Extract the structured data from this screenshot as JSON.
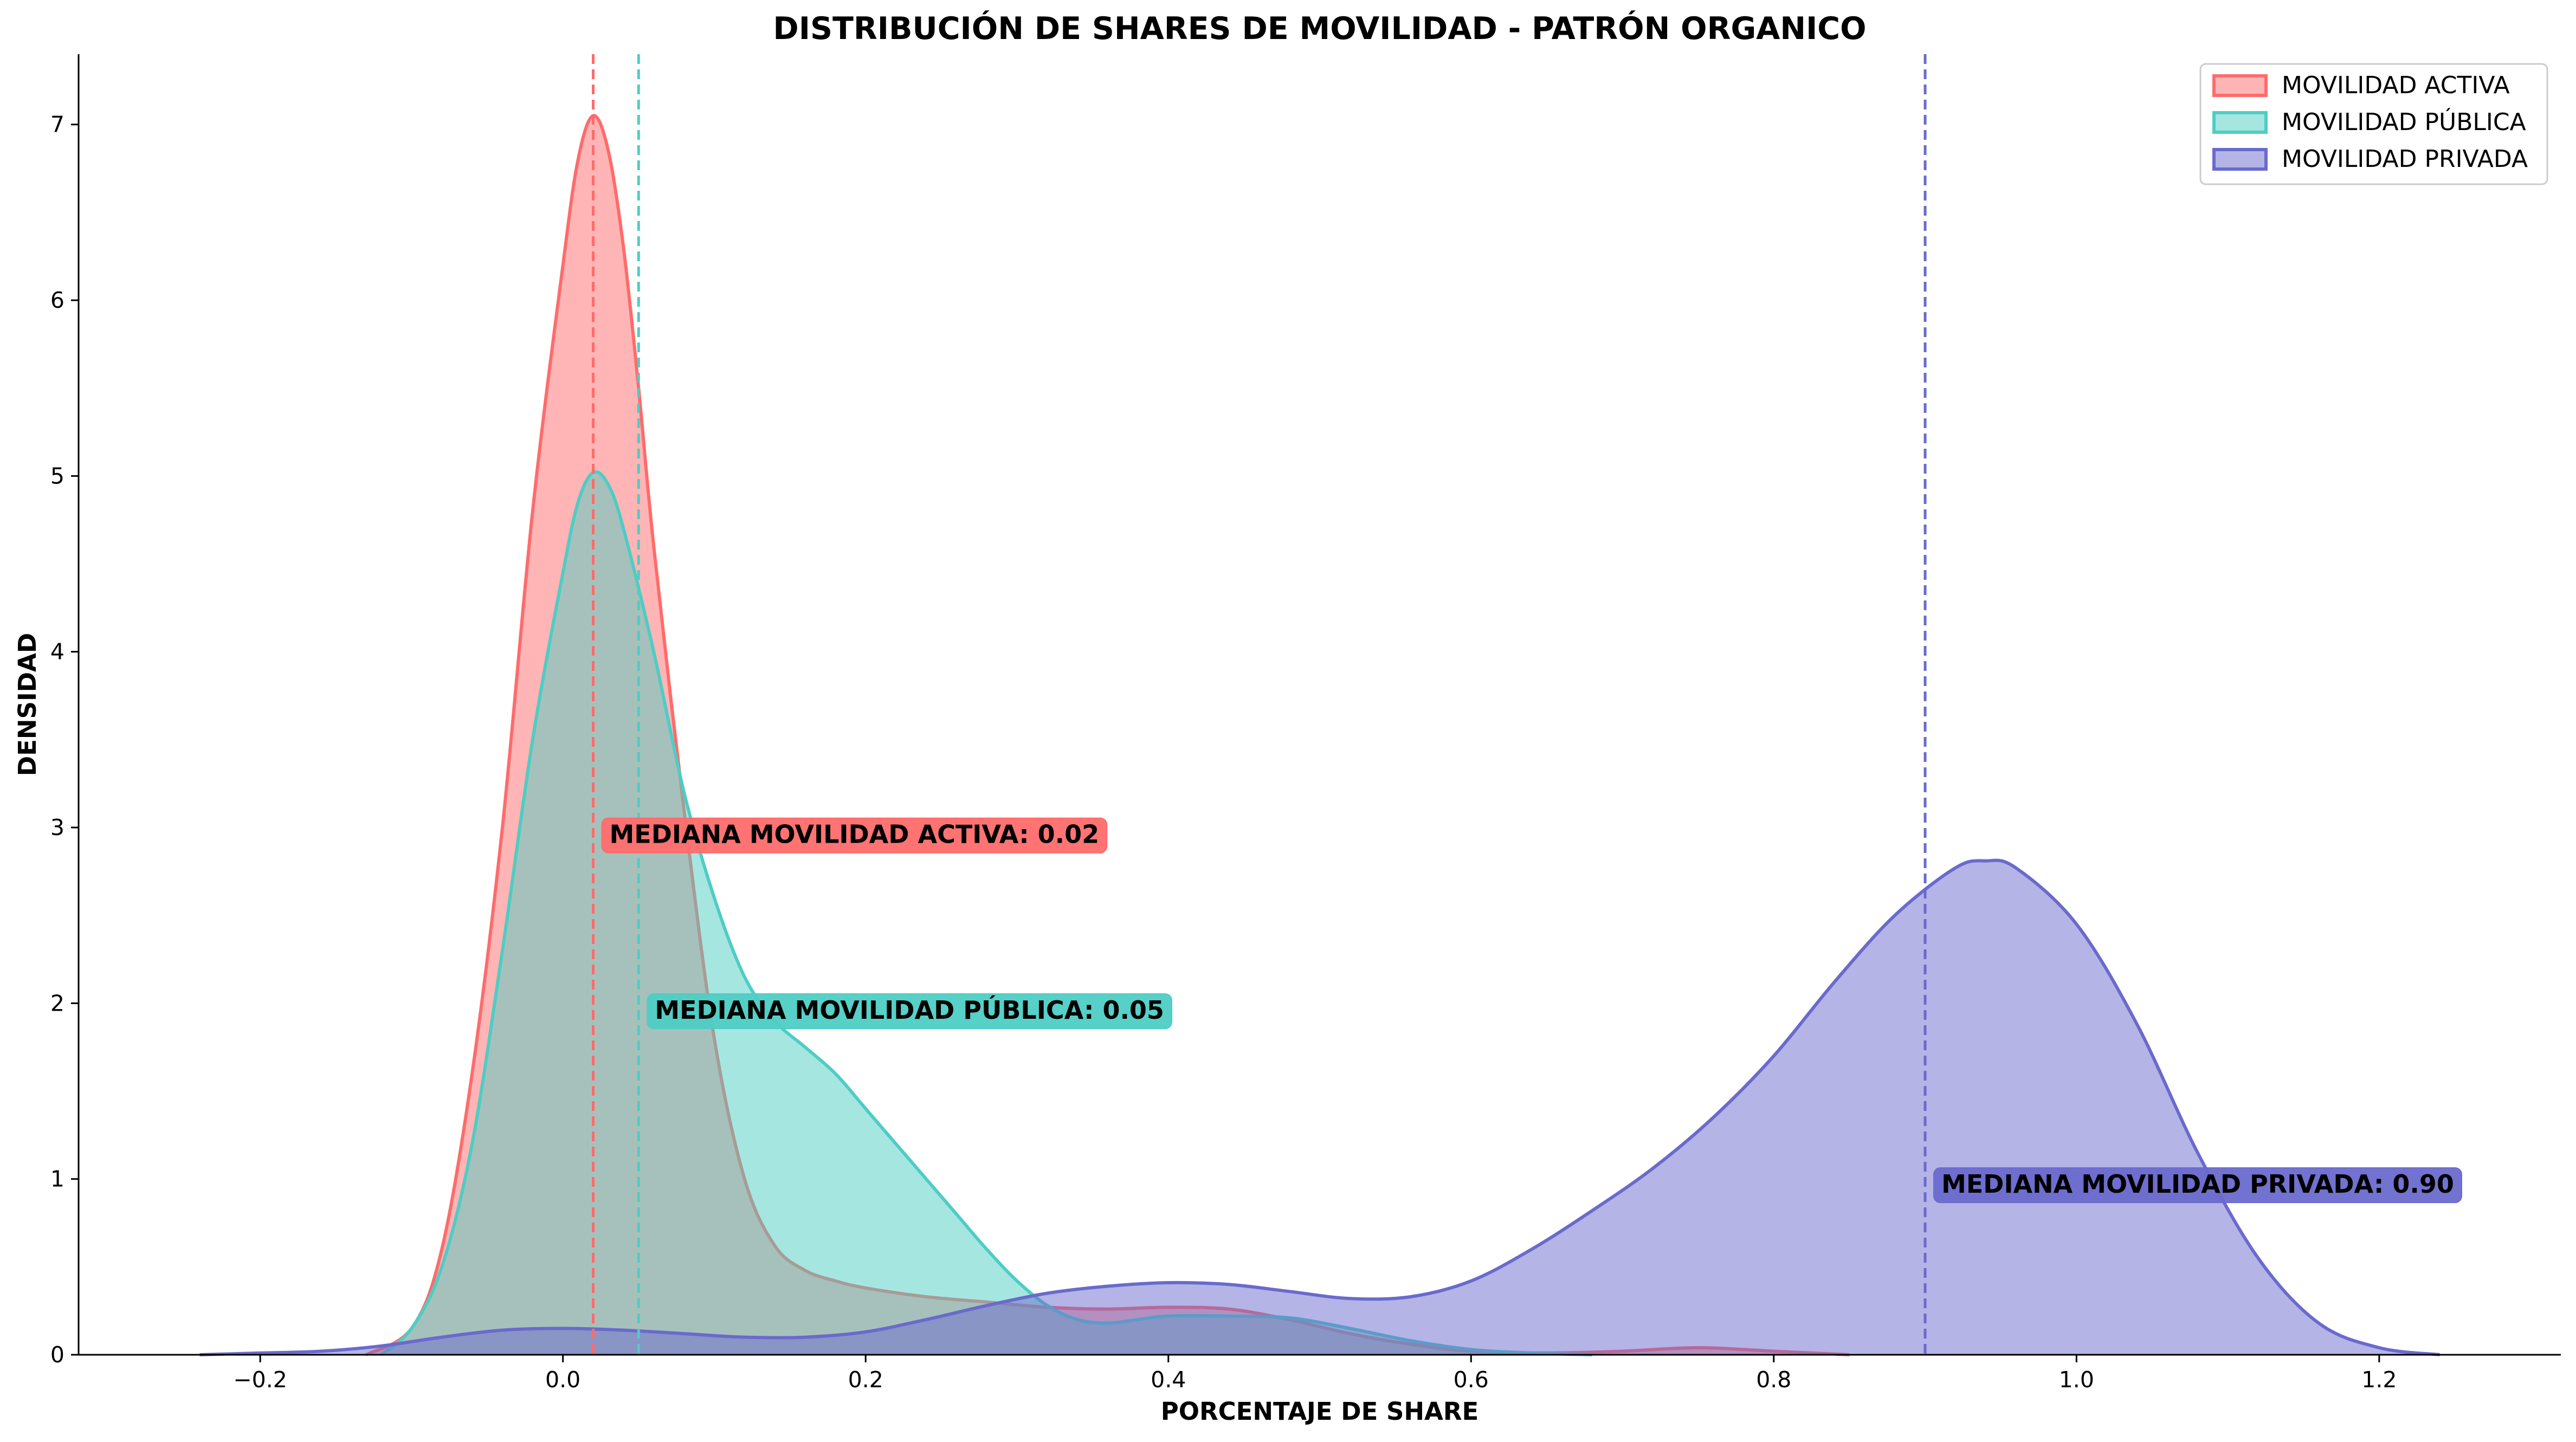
{
  "chart_data": {
    "type": "area",
    "title": "DISTRIBUCIÓN DE SHARES DE MOVILIDAD - PATRÓN ORGANICO",
    "xlabel": "PORCENTAJE DE SHARE",
    "ylabel": "DENSIDAD",
    "xlim": [
      -0.32,
      1.32
    ],
    "ylim": [
      0,
      7.4
    ],
    "xticks": [
      -0.2,
      0.0,
      0.2,
      0.4,
      0.6,
      0.8,
      1.0,
      1.2
    ],
    "xtick_labels": [
      "−0.2",
      "0.0",
      "0.2",
      "0.4",
      "0.6",
      "0.8",
      "1.0",
      "1.2"
    ],
    "yticks": [
      0,
      1,
      2,
      3,
      4,
      5,
      6,
      7
    ],
    "ytick_labels": [
      "0",
      "1",
      "2",
      "3",
      "4",
      "5",
      "6",
      "7"
    ],
    "grid": false,
    "legend_position": "top-right",
    "series": [
      {
        "name": "MOVILIDAD ACTIVA",
        "color": "#ff6b6b",
        "median": 0.02,
        "median_label": "MEDIANA MOVILIDAD ACTIVA: 0.02",
        "annotation_y": 2.93,
        "x": [
          -0.13,
          -0.1,
          -0.08,
          -0.06,
          -0.04,
          -0.02,
          0.0,
          0.01,
          0.02,
          0.03,
          0.04,
          0.05,
          0.06,
          0.08,
          0.1,
          0.12,
          0.14,
          0.16,
          0.18,
          0.2,
          0.24,
          0.28,
          0.32,
          0.36,
          0.4,
          0.44,
          0.48,
          0.52,
          0.56,
          0.6,
          0.65,
          0.7,
          0.75,
          0.8,
          0.85
        ],
        "y": [
          0.0,
          0.15,
          0.6,
          1.6,
          3.0,
          4.8,
          6.2,
          6.8,
          7.05,
          6.85,
          6.3,
          5.5,
          4.6,
          3.1,
          1.8,
          1.0,
          0.62,
          0.48,
          0.42,
          0.38,
          0.33,
          0.3,
          0.27,
          0.26,
          0.27,
          0.26,
          0.2,
          0.12,
          0.06,
          0.02,
          0.01,
          0.02,
          0.04,
          0.02,
          0.0
        ]
      },
      {
        "name": "MOVILIDAD PÚBLICA",
        "color": "#4ecdc4",
        "median": 0.05,
        "median_label": "MEDIANA MOVILIDAD PÚBLICA: 0.05",
        "annotation_y": 1.93,
        "x": [
          -0.12,
          -0.1,
          -0.08,
          -0.06,
          -0.04,
          -0.02,
          0.0,
          0.01,
          0.02,
          0.03,
          0.04,
          0.06,
          0.08,
          0.1,
          0.12,
          0.14,
          0.16,
          0.18,
          0.2,
          0.22,
          0.24,
          0.26,
          0.28,
          0.3,
          0.32,
          0.34,
          0.36,
          0.38,
          0.4,
          0.44,
          0.48,
          0.52,
          0.56,
          0.6,
          0.64,
          0.68
        ],
        "y": [
          0.0,
          0.15,
          0.5,
          1.2,
          2.3,
          3.5,
          4.45,
          4.85,
          5.02,
          4.95,
          4.7,
          4.0,
          3.2,
          2.6,
          2.15,
          1.9,
          1.75,
          1.6,
          1.4,
          1.2,
          1.0,
          0.8,
          0.6,
          0.42,
          0.28,
          0.2,
          0.18,
          0.2,
          0.22,
          0.22,
          0.21,
          0.15,
          0.08,
          0.03,
          0.01,
          0.0
        ]
      },
      {
        "name": "MOVILIDAD PRIVADA",
        "color": "#6a6acd",
        "median": 0.9,
        "median_label": "MEDIANA MOVILIDAD PRIVADA: 0.90",
        "annotation_y": 0.94,
        "x": [
          -0.24,
          -0.2,
          -0.16,
          -0.12,
          -0.08,
          -0.04,
          0.0,
          0.04,
          0.08,
          0.12,
          0.16,
          0.2,
          0.24,
          0.28,
          0.32,
          0.36,
          0.4,
          0.44,
          0.48,
          0.52,
          0.56,
          0.6,
          0.64,
          0.68,
          0.72,
          0.76,
          0.8,
          0.84,
          0.88,
          0.92,
          0.94,
          0.96,
          1.0,
          1.04,
          1.08,
          1.12,
          1.16,
          1.2,
          1.24
        ],
        "y": [
          0.0,
          0.01,
          0.02,
          0.05,
          0.1,
          0.14,
          0.15,
          0.14,
          0.12,
          0.1,
          0.1,
          0.13,
          0.2,
          0.28,
          0.35,
          0.39,
          0.41,
          0.4,
          0.36,
          0.32,
          0.33,
          0.42,
          0.6,
          0.82,
          1.06,
          1.35,
          1.7,
          2.12,
          2.5,
          2.77,
          2.81,
          2.77,
          2.45,
          1.88,
          1.15,
          0.55,
          0.18,
          0.04,
          0.0
        ]
      }
    ]
  }
}
